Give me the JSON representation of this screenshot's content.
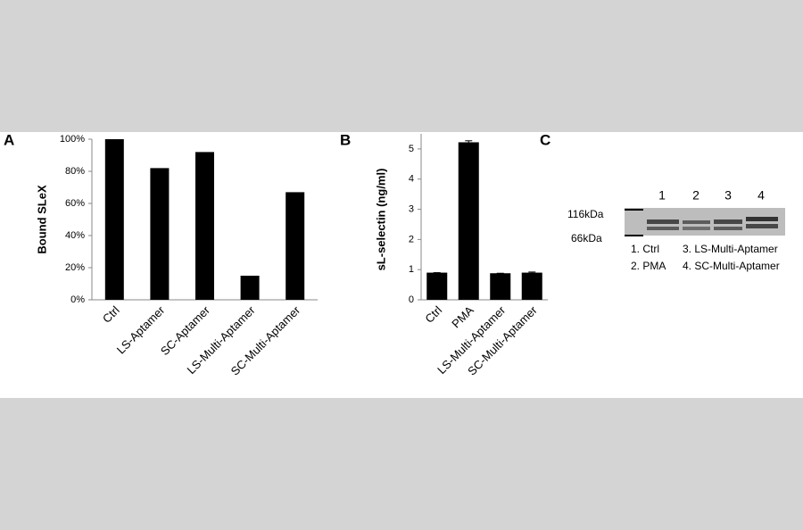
{
  "chart_data": [
    {
      "type": "bar",
      "panel": "A",
      "ylabel": "Bound SLeX",
      "categories": [
        "Ctrl",
        "LS-Aptamer",
        "SC-Aptamer",
        "LS-Multi-Aptamer",
        "SC-Multi-Aptamer"
      ],
      "values": [
        100,
        82,
        92,
        15,
        67
      ],
      "color": "#000000",
      "ylim": [
        0,
        100
      ],
      "yticks": [
        {
          "value": 0,
          "label": "0%"
        },
        {
          "value": 20,
          "label": "20%"
        },
        {
          "value": 40,
          "label": "40%"
        },
        {
          "value": 60,
          "label": "60%"
        },
        {
          "value": 80,
          "label": "80%"
        },
        {
          "value": 100,
          "label": "100%"
        }
      ]
    },
    {
      "type": "bar",
      "panel": "B",
      "ylabel": "sL-selectin (ng/ml)",
      "categories": [
        "Ctrl",
        "PMA",
        "LS-Multi-Aptamer",
        "SC-Multi-Aptamer"
      ],
      "values": [
        0.9,
        5.22,
        0.88,
        0.9
      ],
      "errors": [
        0,
        0.05,
        0,
        0.02
      ],
      "color": "#000000",
      "ylim": [
        0,
        5.5
      ],
      "yticks": [
        0,
        1,
        2,
        3,
        4,
        5
      ]
    }
  ],
  "blot": {
    "panel": "C",
    "lanes": [
      "1",
      "2",
      "3",
      "4"
    ],
    "markers": [
      "116kDa",
      "66kDa"
    ],
    "legend": [
      "1. Ctrl",
      "2. PMA",
      "3. LS-Multi-Aptamer",
      "4. SC-Multi-Aptamer"
    ]
  }
}
